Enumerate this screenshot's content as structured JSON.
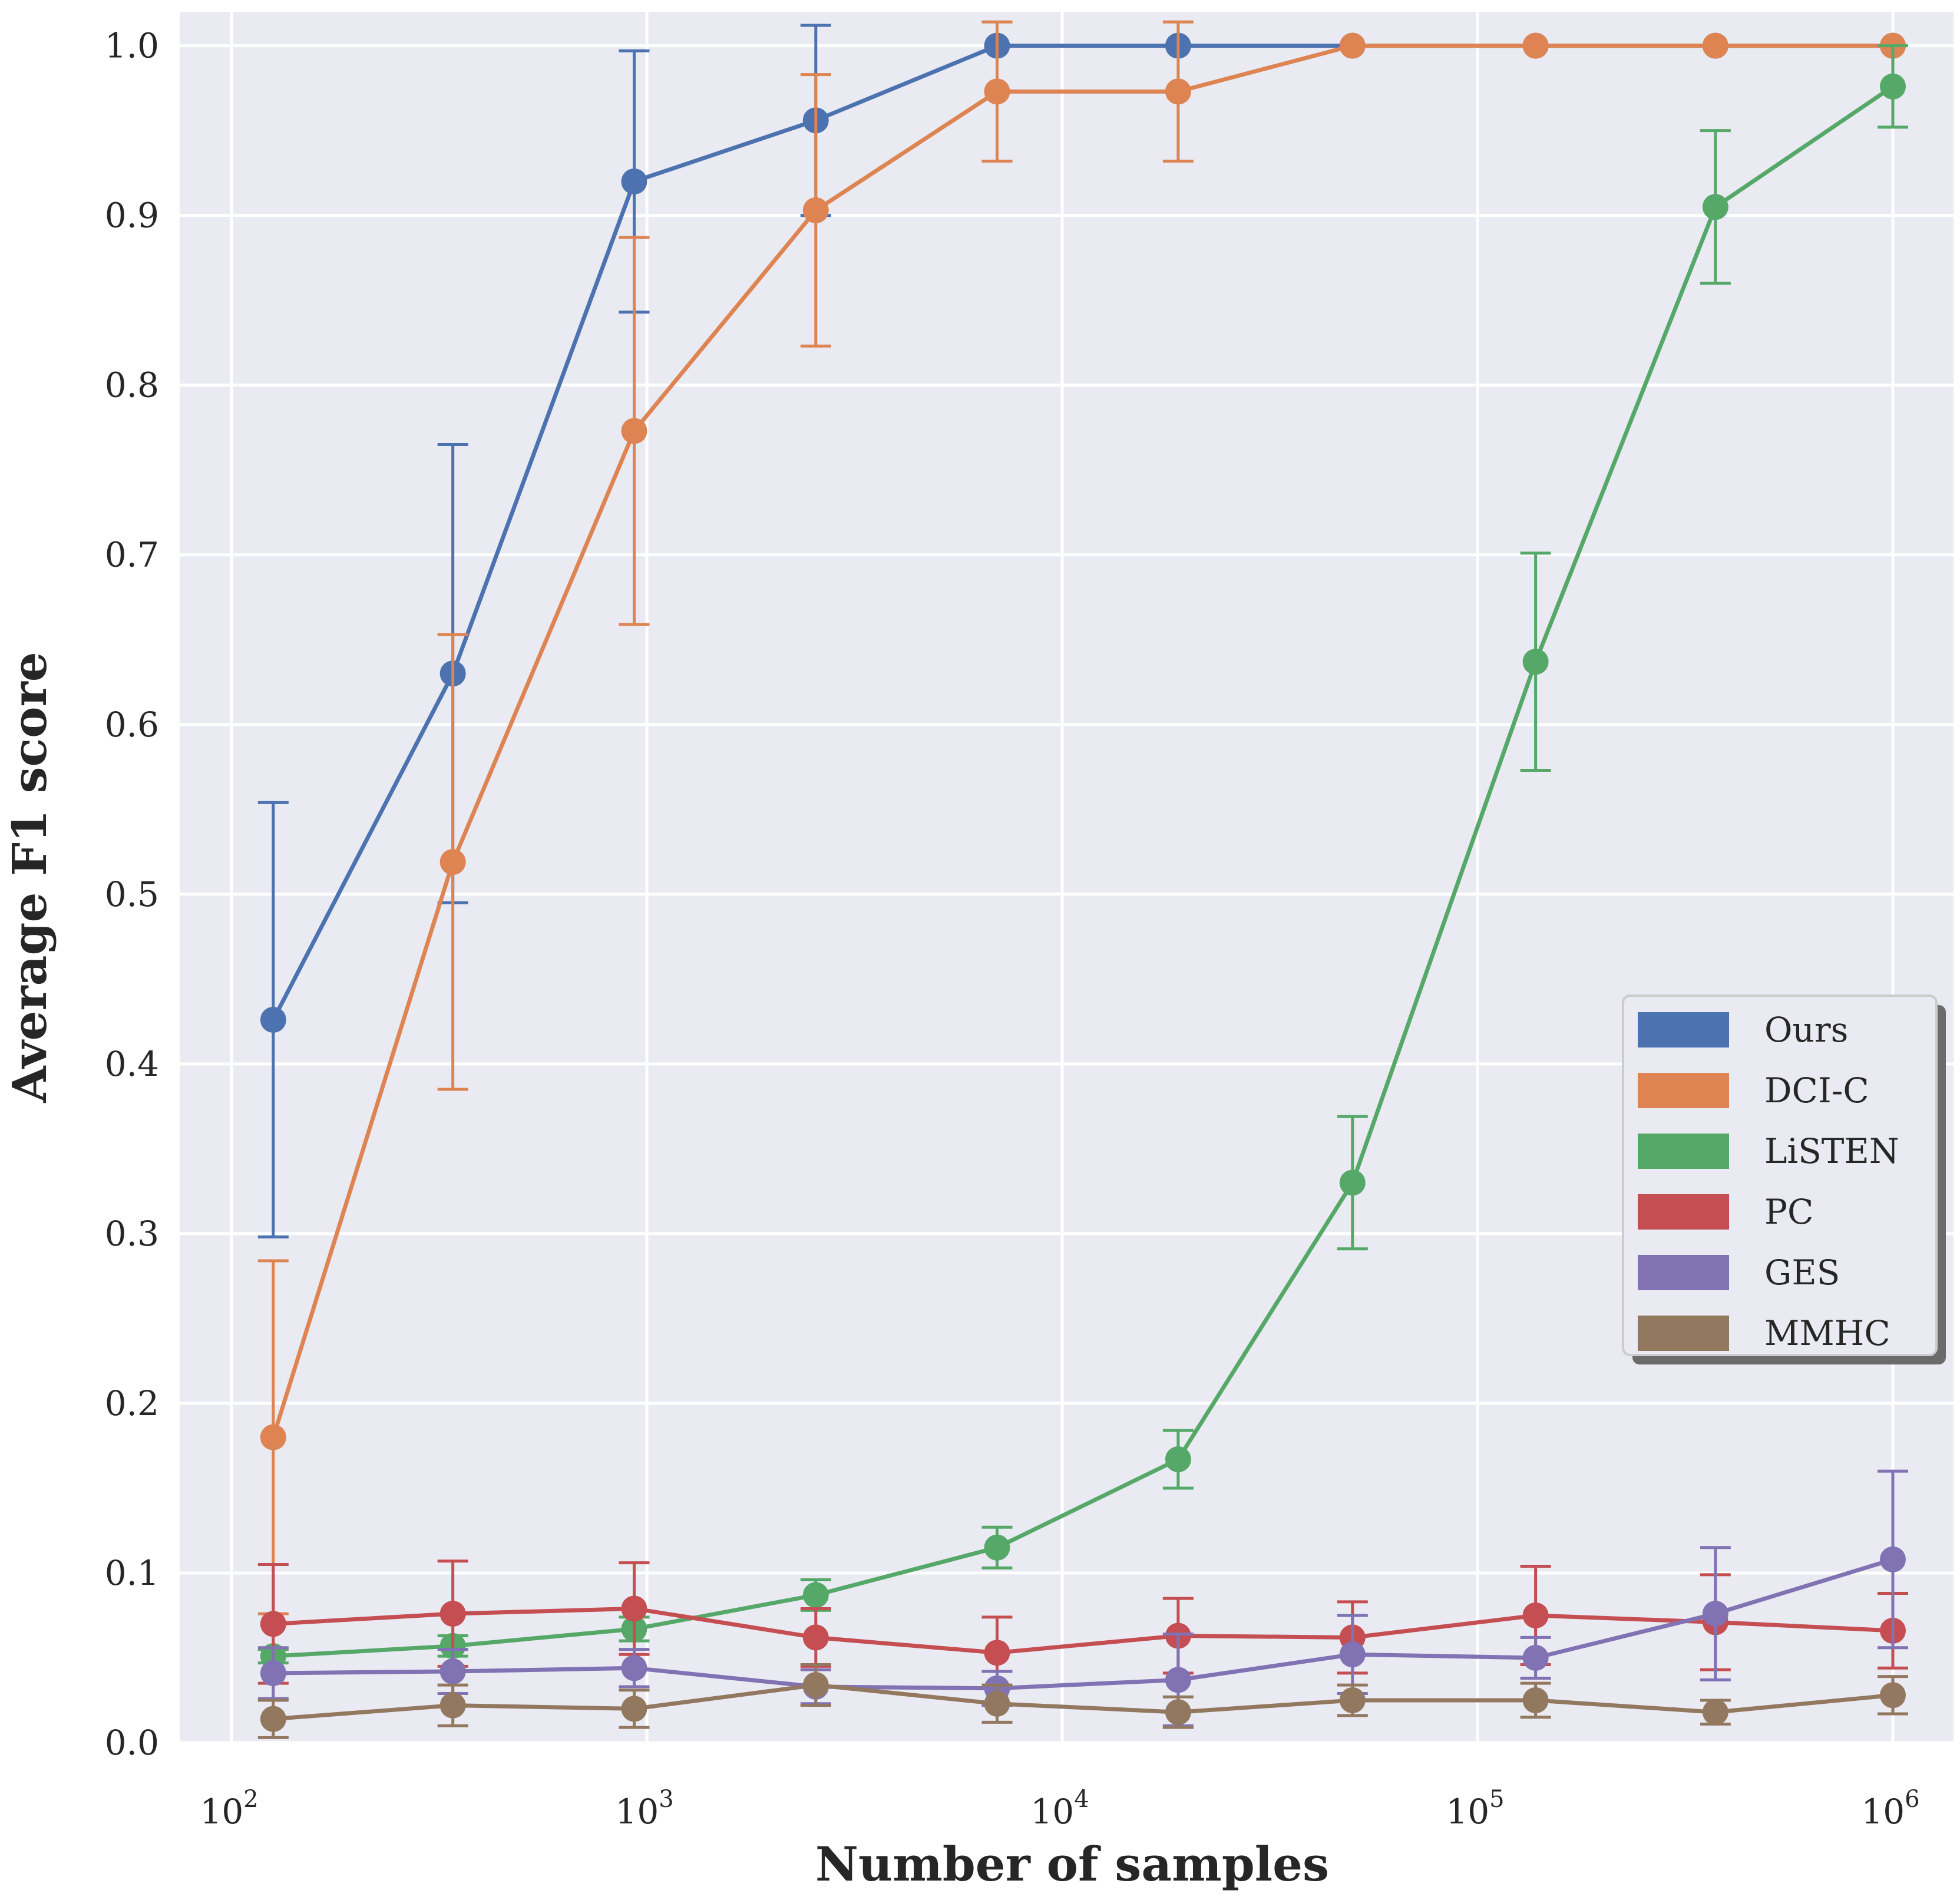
{
  "chart_data": {
    "type": "line",
    "title": "",
    "xlabel": "Number of samples",
    "ylabel": "Average F1 score",
    "xscale": "log",
    "xlim": [
      75,
      1400000
    ],
    "ylim": [
      0.0,
      1.02
    ],
    "grid": true,
    "legend_location": "center-right",
    "x_ticks": [
      {
        "value": 100,
        "base": "10",
        "exp": "2"
      },
      {
        "value": 1000,
        "base": "10",
        "exp": "3"
      },
      {
        "value": 10000,
        "base": "10",
        "exp": "4"
      },
      {
        "value": 100000,
        "base": "10",
        "exp": "5"
      },
      {
        "value": 1000000,
        "base": "10",
        "exp": "6"
      }
    ],
    "y_ticks": [
      {
        "value": 0.0,
        "label": "0.0"
      },
      {
        "value": 0.1,
        "label": "0.1"
      },
      {
        "value": 0.2,
        "label": "0.2"
      },
      {
        "value": 0.3,
        "label": "0.3"
      },
      {
        "value": 0.4,
        "label": "0.4"
      },
      {
        "value": 0.5,
        "label": "0.5"
      },
      {
        "value": 0.6,
        "label": "0.6"
      },
      {
        "value": 0.7,
        "label": "0.7"
      },
      {
        "value": 0.8,
        "label": "0.8"
      },
      {
        "value": 0.9,
        "label": "0.9"
      },
      {
        "value": 1.0,
        "label": "1.0"
      }
    ],
    "x": [
      126,
      341,
      932,
      2551,
      6969,
      19020,
      50000,
      138000,
      374000,
      1000000
    ],
    "series": [
      {
        "name": "Ours",
        "color": "#4c72b0",
        "values": [
          0.426,
          0.63,
          0.92,
          0.956,
          1.0,
          1.0,
          1.0,
          1.0,
          1.0,
          1.0
        ],
        "errors": [
          0.128,
          0.135,
          0.077,
          0.056,
          0.0,
          0.0,
          0.0,
          0.0,
          0.0,
          0.0
        ]
      },
      {
        "name": "DCI-C",
        "color": "#dd8452",
        "values": [
          0.18,
          0.519,
          0.773,
          0.903,
          0.973,
          0.973,
          1.0,
          1.0,
          1.0,
          1.0
        ],
        "errors": [
          0.104,
          0.134,
          0.114,
          0.08,
          0.041,
          0.041,
          0.0,
          0.0,
          0.0,
          0.0
        ]
      },
      {
        "name": "LiSTEN",
        "color": "#55a868",
        "values": [
          0.051,
          0.057,
          0.067,
          0.087,
          0.115,
          0.167,
          0.33,
          0.637,
          0.905,
          0.976
        ],
        "errors": [
          0.004,
          0.006,
          0.007,
          0.009,
          0.012,
          0.017,
          0.039,
          0.064,
          0.045,
          0.024
        ]
      },
      {
        "name": "PC",
        "color": "#c44e52",
        "values": [
          0.07,
          0.076,
          0.079,
          0.062,
          0.053,
          0.063,
          0.062,
          0.075,
          0.071,
          0.066
        ],
        "errors": [
          0.035,
          0.031,
          0.027,
          0.017,
          0.021,
          0.022,
          0.021,
          0.029,
          0.028,
          0.022
        ]
      },
      {
        "name": "GES",
        "color": "#8172b3",
        "values": [
          0.041,
          0.042,
          0.044,
          0.033,
          0.032,
          0.037,
          0.052,
          0.05,
          0.076,
          0.108
        ],
        "errors": [
          0.015,
          0.013,
          0.011,
          0.01,
          0.01,
          0.027,
          0.023,
          0.012,
          0.039,
          0.052
        ]
      },
      {
        "name": "MMHC",
        "color": "#937860",
        "values": [
          0.014,
          0.022,
          0.02,
          0.034,
          0.023,
          0.018,
          0.025,
          0.025,
          0.018,
          0.028
        ],
        "errors": [
          0.011,
          0.012,
          0.011,
          0.012,
          0.011,
          0.009,
          0.009,
          0.01,
          0.007,
          0.011
        ]
      }
    ]
  }
}
